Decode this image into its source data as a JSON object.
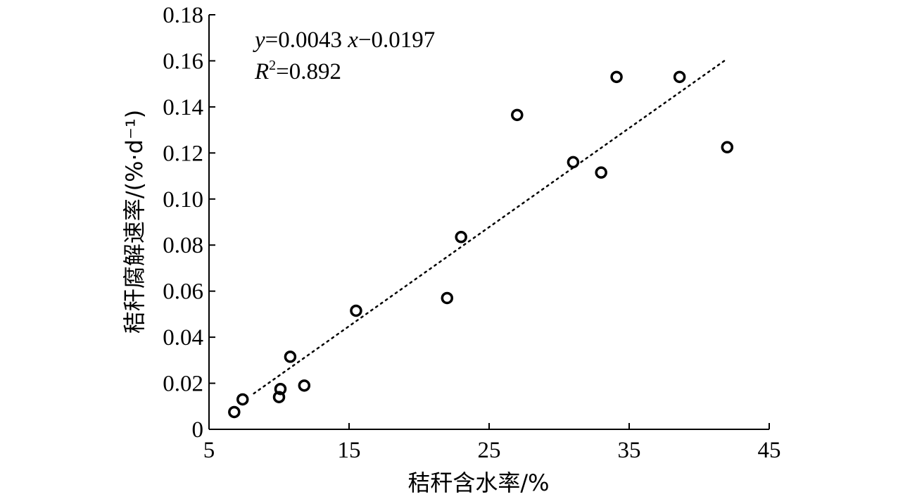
{
  "chart_data": {
    "type": "scatter",
    "title": "",
    "xlabel": "秸秆含水率/%",
    "ylabel": "秸秆腐解速率/(%·d⁻¹)",
    "xlim": [
      5,
      45
    ],
    "ylim": [
      0,
      0.18
    ],
    "x_ticks": [
      5,
      15,
      25,
      35,
      45
    ],
    "x_tick_labels": [
      "5",
      "15",
      "25",
      "35",
      "45"
    ],
    "y_ticks": [
      0,
      0.02,
      0.04,
      0.06,
      0.08,
      0.1,
      0.12,
      0.14,
      0.16,
      0.18
    ],
    "y_tick_labels": [
      "0",
      "0.02",
      "0.04",
      "0.06",
      "0.08",
      "0.10",
      "0.12",
      "0.14",
      "0.16",
      "0.18"
    ],
    "grid": false,
    "legend": "none",
    "marker": "open-circle",
    "series": [
      {
        "points": [
          {
            "x": 6.8,
            "y": 0.0075
          },
          {
            "x": 7.4,
            "y": 0.013
          },
          {
            "x": 10.0,
            "y": 0.014
          },
          {
            "x": 10.1,
            "y": 0.0175
          },
          {
            "x": 10.8,
            "y": 0.0315
          },
          {
            "x": 11.8,
            "y": 0.019
          },
          {
            "x": 15.5,
            "y": 0.0515
          },
          {
            "x": 22.0,
            "y": 0.057
          },
          {
            "x": 23.0,
            "y": 0.0835
          },
          {
            "x": 27.0,
            "y": 0.1365
          },
          {
            "x": 31.0,
            "y": 0.116
          },
          {
            "x": 33.0,
            "y": 0.1115
          },
          {
            "x": 34.1,
            "y": 0.153
          },
          {
            "x": 38.6,
            "y": 0.153
          },
          {
            "x": 42.0,
            "y": 0.1225
          }
        ]
      }
    ],
    "trendline": {
      "style": "dotted",
      "slope": 0.0043,
      "intercept": -0.0197,
      "x_range": [
        8.2,
        42.0
      ]
    },
    "annotations": {
      "equation": {
        "y_var": "y",
        "eq1": "=0.0043 ",
        "x_var": "x",
        "eq2": "−0.0197"
      },
      "r2": {
        "r_var": "R",
        "sup": "2",
        "value": "=0.892"
      }
    }
  },
  "colors": {
    "axis": "#000000",
    "marker": "#000000",
    "trend": "#000000",
    "background": "#ffffff"
  }
}
